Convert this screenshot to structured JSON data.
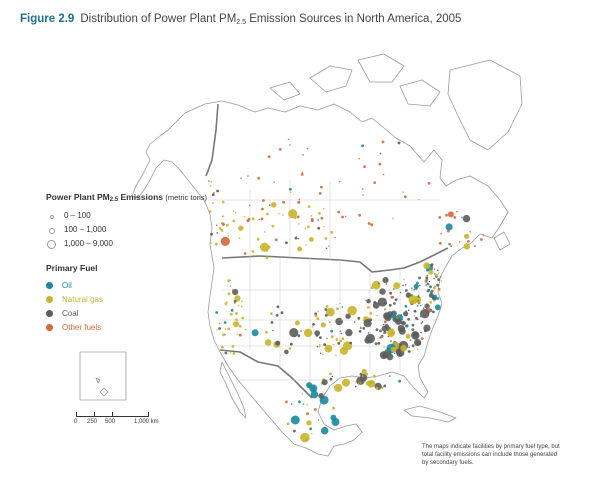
{
  "title": {
    "figure": "Figure 2.9",
    "text_before_sub": "Distribution of Power Plant PM",
    "sub": "2.5",
    "text_after_sub": " Emission Sources in North America, 2005"
  },
  "legend": {
    "size_heading_prefix": "Power Plant PM",
    "size_heading_sub": "2.5",
    "size_heading_suffix": " Emissions",
    "size_unit": "(metric tons)",
    "size_classes": [
      {
        "label": "0 – 100"
      },
      {
        "label": "100 – 1,000"
      },
      {
        "label": "1,000 – 9,000"
      }
    ],
    "fuel_heading": "Primary Fuel",
    "fuels": [
      {
        "label": "Oil",
        "color": "#1a8a9c"
      },
      {
        "label": "Natural gas",
        "color": "#c9b52a"
      },
      {
        "label": "Coal",
        "color": "#5c5c5c"
      },
      {
        "label": "Other fuels",
        "color": "#d4683a"
      }
    ]
  },
  "scale_bar": {
    "labels": [
      "0",
      "250",
      "500",
      "1,000 km"
    ]
  },
  "note": "The maps indicate facilities by primary fuel type, but total facility emissions can include those generated by secondary fuels."
}
